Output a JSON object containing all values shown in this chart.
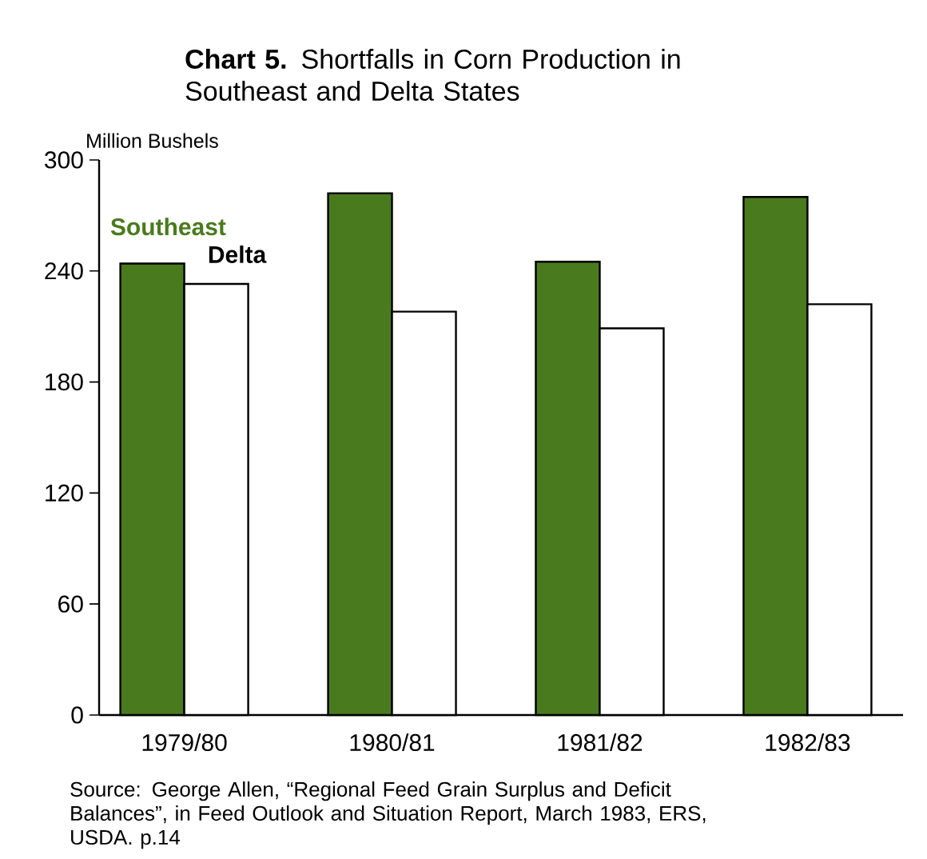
{
  "chart_data": {
    "type": "bar",
    "title": "**Chart 5.** Shortfalls in Corn Production in Southeast and Delta States",
    "ylabel": "Million Bushels",
    "categories": [
      "1979/80",
      "1980/81",
      "1981/82",
      "1982/83"
    ],
    "series": [
      {
        "name": "Southeast",
        "color": "#4a7a1e",
        "values": [
          244,
          282,
          245,
          280
        ]
      },
      {
        "name": "Delta",
        "color": "#ffffff",
        "values": [
          233,
          218,
          209,
          222
        ]
      }
    ],
    "ylim": [
      0,
      300
    ],
    "yticks": [
      0,
      60,
      120,
      180,
      240,
      300
    ],
    "legend": "top left",
    "grid": false,
    "annotations": [
      "Source: George Allen, “Regional Feed Grain Surplus and Deficit Balances”, in Feed Outlook and Situation Report, March 1983, ERS, USDA. p.14"
    ]
  }
}
